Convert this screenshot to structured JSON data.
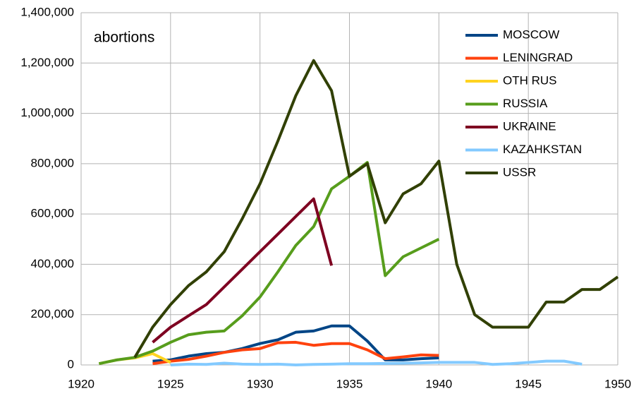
{
  "chart_data": {
    "type": "line",
    "title": "abortions",
    "x": [
      1921,
      1922,
      1923,
      1924,
      1925,
      1926,
      1927,
      1928,
      1929,
      1930,
      1931,
      1932,
      1933,
      1934,
      1935,
      1936,
      1937,
      1938,
      1939,
      1940,
      1941,
      1942,
      1943,
      1944,
      1945,
      1946,
      1947,
      1948,
      1949,
      1950
    ],
    "series": [
      {
        "name": "MOSCOW",
        "color": "#004586",
        "values": [
          null,
          null,
          null,
          15000,
          20000,
          35000,
          45000,
          50000,
          65000,
          85000,
          100000,
          130000,
          135000,
          155000,
          155000,
          95000,
          20000,
          20000,
          25000,
          28000,
          null,
          null,
          null,
          null,
          null,
          null,
          null,
          null,
          null,
          null
        ]
      },
      {
        "name": "LENINGRAD",
        "color": "#ff420e",
        "values": [
          null,
          null,
          null,
          5000,
          15000,
          22000,
          35000,
          50000,
          60000,
          65000,
          88000,
          90000,
          78000,
          85000,
          85000,
          60000,
          25000,
          32000,
          40000,
          38000,
          null,
          null,
          null,
          null,
          null,
          null,
          null,
          null,
          null,
          null
        ]
      },
      {
        "name": "OTH RUS",
        "color": "#ffd320",
        "values": [
          5000,
          20000,
          28000,
          45000,
          10000,
          null,
          null,
          null,
          null,
          null,
          null,
          null,
          null,
          null,
          null,
          null,
          null,
          null,
          null,
          null,
          null,
          null,
          null,
          null,
          null,
          null,
          null,
          null,
          null,
          null
        ]
      },
      {
        "name": "RUSSIA",
        "color": "#579d1c",
        "values": [
          5000,
          20000,
          30000,
          55000,
          90000,
          120000,
          130000,
          135000,
          195000,
          270000,
          370000,
          475000,
          550000,
          700000,
          750000,
          805000,
          355000,
          430000,
          465000,
          500000,
          null,
          null,
          null,
          null,
          null,
          null,
          null,
          null,
          null,
          null
        ]
      },
      {
        "name": "UKRAINE",
        "color": "#7e0021",
        "values": [
          null,
          null,
          null,
          90000,
          150000,
          195000,
          240000,
          310000,
          380000,
          450000,
          520000,
          590000,
          660000,
          395000,
          null,
          null,
          null,
          null,
          null,
          null,
          null,
          null,
          null,
          null,
          null,
          null,
          null,
          null,
          null,
          null
        ]
      },
      {
        "name": "KAZAHKSTAN",
        "color": "#83caff",
        "values": [
          null,
          null,
          null,
          null,
          0,
          3000,
          2000,
          7000,
          3000,
          2000,
          3000,
          0,
          2000,
          3000,
          5000,
          5000,
          6000,
          7000,
          8000,
          10000,
          10000,
          10000,
          2000,
          5000,
          10000,
          15000,
          15000,
          3000,
          null,
          null
        ]
      },
      {
        "name": "USSR",
        "color": "#314004",
        "values": [
          null,
          null,
          30000,
          150000,
          240000,
          315000,
          370000,
          450000,
          580000,
          720000,
          890000,
          1070000,
          1210000,
          1090000,
          750000,
          800000,
          565000,
          680000,
          720000,
          810000,
          400000,
          200000,
          150000,
          150000,
          150000,
          250000,
          250000,
          300000,
          300000,
          350000
        ]
      }
    ],
    "xlim": [
      1920,
      1950
    ],
    "xticks": [
      1920,
      1925,
      1930,
      1935,
      1940,
      1945,
      1950
    ],
    "ylim": [
      0,
      1400000
    ],
    "yticks": [
      0,
      {
        "value": 200000,
        "label": "200,000"
      },
      {
        "value": 400000,
        "label": "400,000"
      },
      {
        "value": 600000,
        "label": "600,000"
      },
      {
        "value": 800000,
        "label": "800,000"
      },
      {
        "value": 1000000,
        "label": "1,000,000"
      },
      {
        "value": 1200000,
        "label": "1,200,000"
      },
      {
        "value": 1400000,
        "label": "1,400,000"
      }
    ],
    "grid": true,
    "legend": "top-right"
  }
}
